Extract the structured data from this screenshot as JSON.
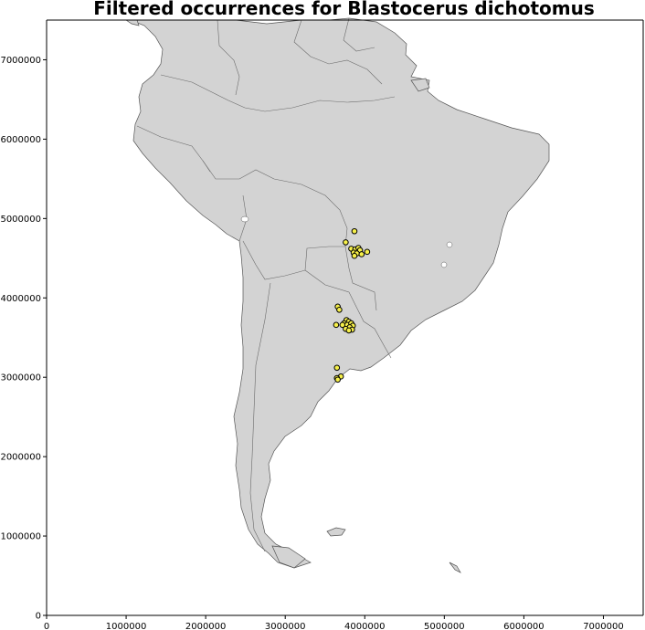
{
  "title": "Filtered occurrences for Blastocerus dichotomus",
  "colors": {
    "land": "#d3d3d3",
    "border": "#6a6a6a",
    "point_fill": "#f6f04a",
    "point_stroke": "#000000"
  },
  "map": {
    "x_range": [
      0,
      7500000
    ],
    "y_range": [
      0,
      7500000
    ],
    "x_ticks": [
      0,
      1000000,
      2000000,
      3000000,
      4000000,
      5000000,
      6000000,
      7000000
    ],
    "y_ticks": [
      0,
      1000000,
      2000000,
      3000000,
      4000000,
      5000000,
      6000000,
      7000000
    ],
    "x_tick_labels": [
      "0",
      "1000000",
      "2000000",
      "3000000",
      "4000000",
      "5000000",
      "6000000",
      "7000000"
    ],
    "y_tick_labels": [
      "0",
      "1000000",
      "2000000",
      "3000000",
      "4000000",
      "5000000",
      "6000000",
      "7000000"
    ]
  },
  "occurrences": [
    [
      3870000,
      4840000
    ],
    [
      3760000,
      4700000
    ],
    [
      3830000,
      4620000
    ],
    [
      3880000,
      4610000
    ],
    [
      3920000,
      4630000
    ],
    [
      3940000,
      4600000
    ],
    [
      3860000,
      4570000
    ],
    [
      3900000,
      4560000
    ],
    [
      3960000,
      4550000
    ],
    [
      3870000,
      4530000
    ],
    [
      4030000,
      4580000
    ],
    [
      3660000,
      3890000
    ],
    [
      3680000,
      3850000
    ],
    [
      3770000,
      3720000
    ],
    [
      3800000,
      3700000
    ],
    [
      3740000,
      3680000
    ],
    [
      3720000,
      3660000
    ],
    [
      3780000,
      3660000
    ],
    [
      3830000,
      3680000
    ],
    [
      3850000,
      3650000
    ],
    [
      3810000,
      3630000
    ],
    [
      3760000,
      3610000
    ],
    [
      3840000,
      3600000
    ],
    [
      3800000,
      3590000
    ],
    [
      3640000,
      3660000
    ],
    [
      3650000,
      3120000
    ],
    [
      3700000,
      3010000
    ],
    [
      3650000,
      2990000
    ],
    [
      3660000,
      2970000
    ]
  ]
}
